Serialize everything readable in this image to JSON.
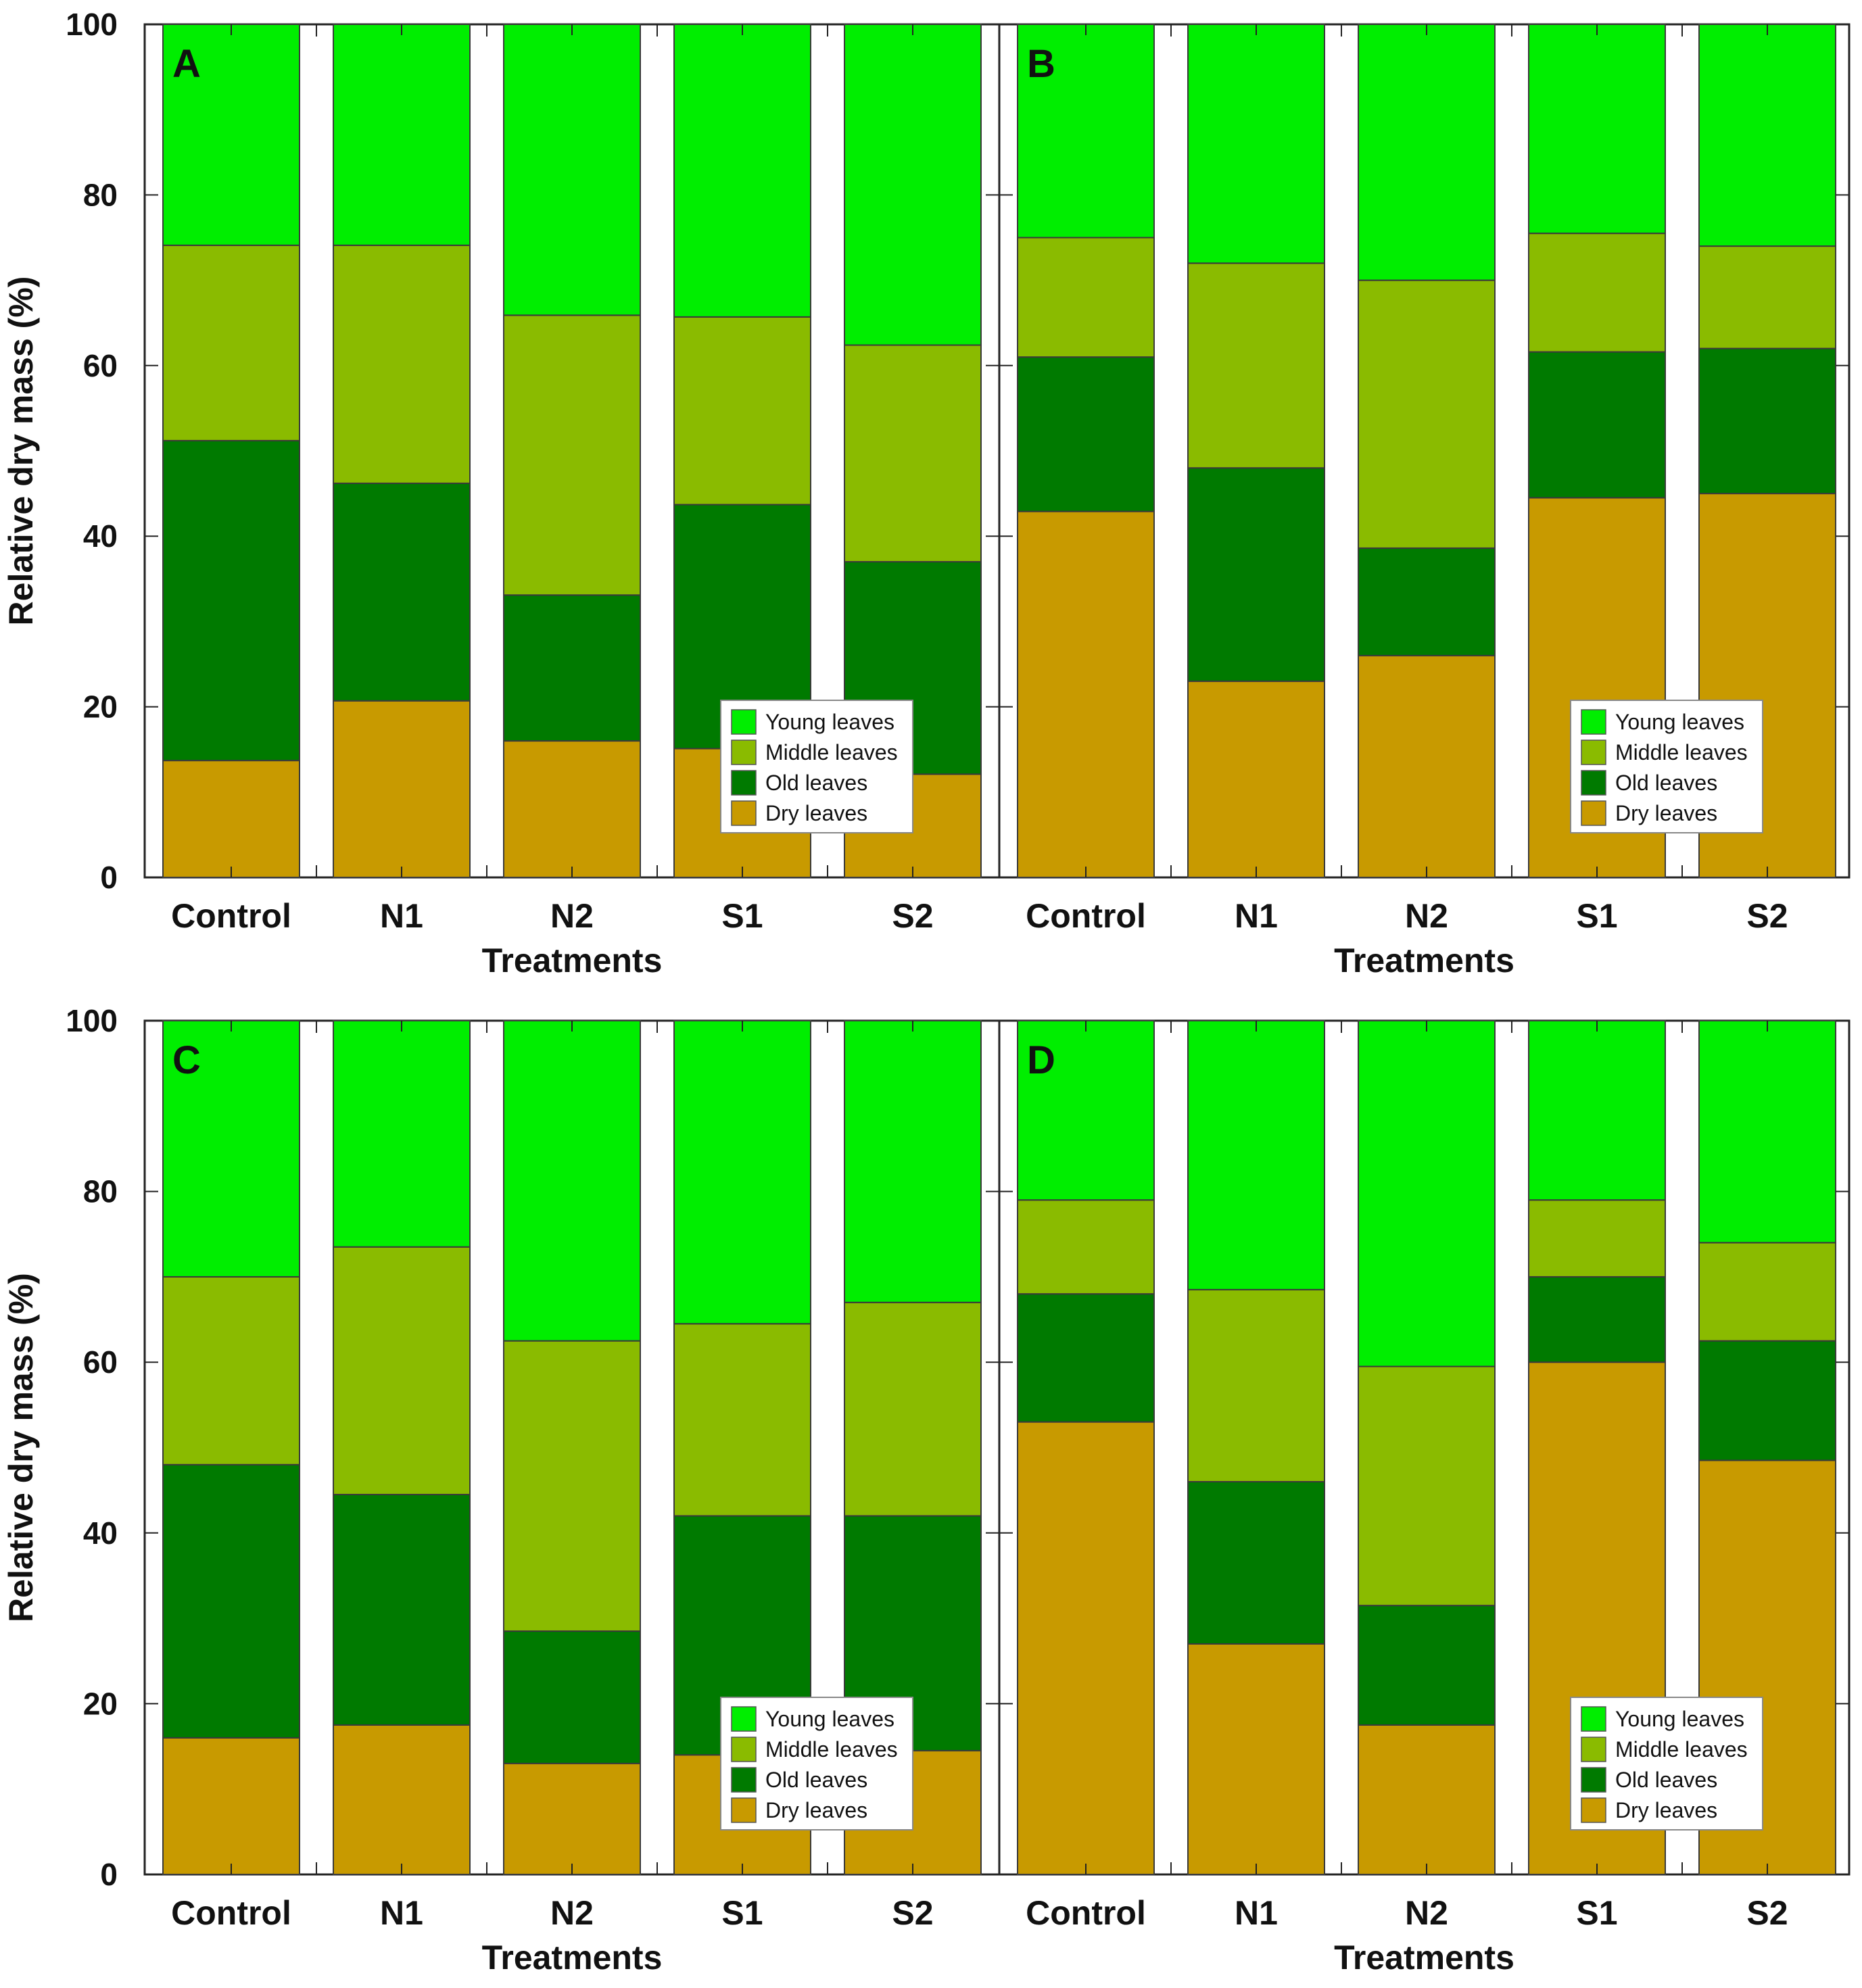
{
  "chart_data": [
    {
      "type": "bar",
      "stacked": true,
      "panel": "A",
      "categories": [
        "Control",
        "N1",
        "N2",
        "S1",
        "S2"
      ],
      "series": [
        {
          "name": "Dry leaves",
          "color": "#c89a00",
          "values": [
            13.7,
            20.7,
            16.0,
            15.1,
            12.1
          ]
        },
        {
          "name": "Old leaves",
          "color": "#007a00",
          "values": [
            37.5,
            25.5,
            17.1,
            28.6,
            24.9
          ]
        },
        {
          "name": "Middle leaves",
          "color": "#8abb00",
          "values": [
            22.9,
            27.9,
            32.8,
            22.0,
            25.4
          ]
        },
        {
          "name": "Young leaves",
          "color": "#00ee00",
          "values": [
            25.9,
            25.9,
            34.1,
            34.3,
            37.6
          ]
        }
      ],
      "xlabel": "Treatments",
      "ylabel": "Relative dry mass (%)",
      "ylim": [
        0,
        100
      ],
      "yticks": [
        0,
        20,
        40,
        60,
        80,
        100
      ],
      "legend_position": "bottom-right"
    },
    {
      "type": "bar",
      "stacked": true,
      "panel": "B",
      "categories": [
        "Control",
        "N1",
        "N2",
        "S1",
        "S2"
      ],
      "series": [
        {
          "name": "Dry leaves",
          "color": "#c89a00",
          "values": [
            42.9,
            23.0,
            26.0,
            44.5,
            45.0
          ]
        },
        {
          "name": "Old leaves",
          "color": "#007a00",
          "values": [
            18.1,
            25.0,
            12.6,
            17.1,
            17.0
          ]
        },
        {
          "name": "Middle leaves",
          "color": "#8abb00",
          "values": [
            14.0,
            24.0,
            31.4,
            13.9,
            12.0
          ]
        },
        {
          "name": "Young leaves",
          "color": "#00ee00",
          "values": [
            25.0,
            28.0,
            30.0,
            24.5,
            26.0
          ]
        }
      ],
      "xlabel": "Treatments",
      "ylabel": "",
      "ylim": [
        0,
        100
      ],
      "legend_position": "bottom-right"
    },
    {
      "type": "bar",
      "stacked": true,
      "panel": "C",
      "categories": [
        "Control",
        "N1",
        "N2",
        "S1",
        "S2"
      ],
      "series": [
        {
          "name": "Dry leaves",
          "color": "#c89a00",
          "values": [
            16.0,
            17.5,
            13.0,
            14.0,
            14.5
          ]
        },
        {
          "name": "Old leaves",
          "color": "#007a00",
          "values": [
            32.0,
            27.0,
            15.5,
            28.0,
            27.5
          ]
        },
        {
          "name": "Middle leaves",
          "color": "#8abb00",
          "values": [
            22.0,
            29.0,
            34.0,
            22.5,
            25.0
          ]
        },
        {
          "name": "Young leaves",
          "color": "#00ee00",
          "values": [
            30.0,
            26.5,
            37.5,
            35.5,
            33.0
          ]
        }
      ],
      "xlabel": "Treatments",
      "ylabel": "Relative dry mass (%)",
      "ylim": [
        0,
        100
      ],
      "yticks": [
        0,
        20,
        40,
        60,
        80,
        100
      ],
      "legend_position": "bottom-right"
    },
    {
      "type": "bar",
      "stacked": true,
      "panel": "D",
      "categories": [
        "Control",
        "N1",
        "N2",
        "S1",
        "S2"
      ],
      "series": [
        {
          "name": "Dry leaves",
          "color": "#c89a00",
          "values": [
            53.0,
            27.0,
            17.5,
            60.0,
            48.5
          ]
        },
        {
          "name": "Old leaves",
          "color": "#007a00",
          "values": [
            15.0,
            19.0,
            14.0,
            10.0,
            14.0
          ]
        },
        {
          "name": "Middle leaves",
          "color": "#8abb00",
          "values": [
            11.0,
            22.5,
            28.0,
            9.0,
            11.5
          ]
        },
        {
          "name": "Young leaves",
          "color": "#00ee00",
          "values": [
            21.0,
            31.5,
            40.5,
            21.0,
            26.0
          ]
        }
      ],
      "xlabel": "Treatments",
      "ylabel": "",
      "ylim": [
        0,
        100
      ],
      "legend_position": "bottom-right"
    }
  ],
  "legend": {
    "entries": [
      {
        "label": "Young leaves",
        "color": "#00ee00"
      },
      {
        "label": "Middle leaves",
        "color": "#8abb00"
      },
      {
        "label": "Old leaves",
        "color": "#007a00"
      },
      {
        "label": "Dry leaves",
        "color": "#c89a00"
      }
    ]
  }
}
